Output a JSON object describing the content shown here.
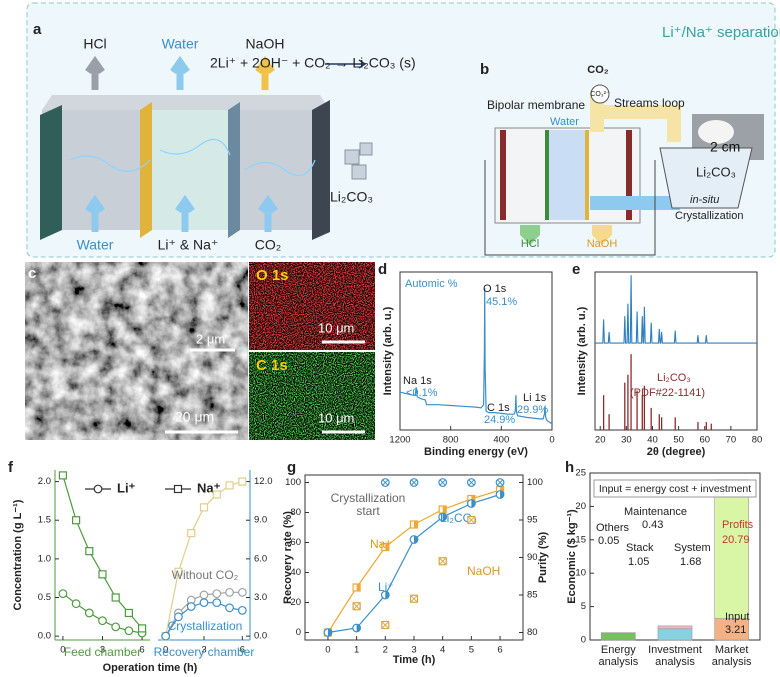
{
  "banner": "Li⁺/Na⁺ separation",
  "panel_a": {
    "label": "a",
    "outputs": [
      "HCl",
      "Water",
      "NaOH"
    ],
    "inputs": [
      "Water",
      "Li⁺ & Na⁺",
      "CO₂"
    ],
    "equation": "2Li⁺ + 2OH⁻ + CO₂ → Li₂CO₃ (s)",
    "product": "Li₂CO₃"
  },
  "panel_b": {
    "label": "b",
    "gas": "CO₂",
    "ion": "CO₃²⁻",
    "membrane": "Bipolar membrane",
    "loop": "Streams loop",
    "feed": "Water",
    "scale": "2 cm",
    "product": "Li₂CO₃",
    "mode": "in-situ",
    "process": "Crystallization",
    "acid": "HCl",
    "base": "NaOH"
  },
  "panel_c": {
    "label": "c",
    "inset_scale": "2 μm",
    "scale": "20 μm",
    "maps": [
      {
        "element": "O 1s",
        "scale": "10 μm"
      },
      {
        "element": "C 1s",
        "scale": "10 μm"
      }
    ]
  },
  "chart_data": [
    {
      "label": "d",
      "type": "line",
      "note": "Automic %",
      "xlabel": "Binding energy (eV)",
      "ylabel": "Intensity (arb. u.)",
      "color": "#3a8fc9",
      "xlim": [
        1200,
        0
      ],
      "xticks": [
        1200,
        800,
        400,
        0
      ],
      "ylim": [
        0,
        100
      ],
      "x": [
        1200,
        1150,
        1100,
        1080,
        1072,
        1064,
        1040,
        1000,
        990,
        900,
        800,
        700,
        600,
        560,
        540,
        534,
        531,
        528,
        520,
        500,
        450,
        400,
        350,
        300,
        290,
        285,
        280,
        270,
        200,
        100,
        70,
        60,
        55,
        50,
        40,
        20,
        0
      ],
      "values": [
        24,
        23,
        22,
        22,
        27,
        21,
        20,
        19,
        16,
        16,
        15.5,
        15,
        14.5,
        14,
        16,
        50,
        90,
        40,
        12,
        11,
        11,
        10.5,
        10,
        10,
        12,
        22,
        11,
        9,
        8,
        7,
        7,
        10,
        15,
        8,
        6,
        5,
        4
      ],
      "peaks": [
        {
          "name": "Na 1s",
          "value": 0.1,
          "value_label": "<0.1%"
        },
        {
          "name": "O 1s",
          "value": 45.1,
          "value_label": "45.1%"
        },
        {
          "name": "C 1s",
          "value": 24.9,
          "value_label": "24.9%"
        },
        {
          "name": "Li 1s",
          "value": 29.9,
          "value_label": "29.9%"
        }
      ]
    },
    {
      "label": "e",
      "type": "line",
      "xlabel": "2θ (degree)",
      "ylabel": "Intensity (arb. u.)",
      "xlim": [
        18,
        80
      ],
      "xticks": [
        20,
        30,
        40,
        50,
        60,
        70,
        80
      ],
      "ylim": [
        0,
        100
      ],
      "series": [
        {
          "color": "#2f7fc1",
          "style": "line",
          "x": [
            18,
            21,
            21.3,
            21.6,
            23.1,
            23.4,
            23.7,
            29.1,
            29.4,
            29.7,
            30.3,
            30.6,
            30.9,
            31.5,
            31.8,
            32.1,
            33.8,
            34.1,
            34.4,
            35.8,
            36.1,
            36.4,
            36.6,
            36.9,
            37.2,
            39.2,
            39.5,
            39.8,
            42.3,
            42.6,
            42.9,
            43.2,
            43.5,
            43.8,
            48.4,
            48.7,
            49,
            57.1,
            57.4,
            57.7,
            60.3,
            60.6,
            60.9,
            80
          ],
          "values": [
            55,
            55,
            70,
            55,
            55,
            62,
            55,
            55,
            72,
            55,
            55,
            80,
            55,
            55,
            98,
            55,
            55,
            75,
            55,
            55,
            72,
            55,
            55,
            78,
            55,
            55,
            68,
            55,
            55,
            64,
            55,
            55,
            62,
            55,
            55,
            63,
            55,
            55,
            60,
            55,
            55,
            60,
            55,
            55
          ]
        },
        {
          "name": "Li₂CO₃",
          "source": "(PDF#22-1141)",
          "color": "#8b2c2c",
          "style": "sticks",
          "x": [
            21.3,
            23.4,
            29.4,
            30.6,
            31.8,
            34.1,
            36.1,
            36.9,
            39.5,
            42.6,
            43.5,
            48.7,
            57.4,
            60.6,
            62.5
          ],
          "values": [
            22,
            10,
            30,
            35,
            48,
            25,
            22,
            28,
            14,
            10,
            8,
            8,
            5,
            5,
            4
          ]
        }
      ]
    },
    {
      "label": "f",
      "type": "line",
      "xlabel": "Operation time (h)",
      "ylabel": "Concentration (g L⁻¹)",
      "sections": [
        "Feed chamber",
        "Recovery chamber"
      ],
      "xlim": [
        -0.6,
        6.6
      ],
      "xticks": [
        0,
        3,
        6
      ],
      "ylim": [
        -0.05,
        2.15
      ],
      "yticks": [
        {
          "value": 0,
          "label": "0.0"
        },
        0.5,
        {
          "value": 1,
          "label": "1.0"
        },
        1.5,
        {
          "value": 2,
          "label": "2.0"
        }
      ],
      "y2lim": [
        -0.3,
        12.9
      ],
      "y2ticks": [
        {
          "value": 0,
          "label": "0.0"
        },
        {
          "value": 3,
          "label": "3.0"
        },
        {
          "value": 6,
          "label": "6.0"
        },
        {
          "value": 9,
          "label": "9.0"
        },
        {
          "value": 12,
          "label": "12.0"
        }
      ],
      "series": [
        {
          "name": "Li⁺",
          "color": "#4f9a3f",
          "marker": "circle",
          "x": [
            0,
            1,
            2,
            3,
            4,
            5,
            6
          ],
          "values": [
            0.55,
            0.42,
            0.3,
            0.2,
            0.12,
            0.07,
            0.04
          ]
        },
        {
          "name": "Na⁺",
          "color": "#4f9a3f",
          "marker": "square",
          "x": [
            0,
            1,
            2,
            3,
            4,
            5,
            6
          ],
          "values": [
            2.08,
            1.5,
            1.1,
            0.8,
            0.5,
            0.3,
            0.1
          ]
        },
        {
          "color": "#e0cf8a",
          "marker": "square",
          "axis": "y2",
          "x": [
            0,
            1,
            2,
            3,
            4,
            5,
            6
          ],
          "values": [
            0,
            5,
            8,
            10,
            11,
            11.7,
            12
          ]
        },
        {
          "annotation": "Without CO₂",
          "color": "#9ea3a8",
          "marker": "circle",
          "axis": "y2",
          "x": [
            0,
            1,
            2,
            3,
            4,
            5,
            6
          ],
          "values": [
            0,
            1.8,
            2.8,
            3.2,
            3.3,
            3.4,
            3.4
          ]
        },
        {
          "annotation": "Crystallization",
          "color": "#3a8fc9",
          "marker": "circle",
          "axis": "y2",
          "x": [
            0,
            1,
            2,
            3,
            4,
            5,
            6
          ],
          "values": [
            0,
            1.5,
            2.3,
            2.6,
            2.6,
            2.2,
            2
          ]
        }
      ]
    },
    {
      "label": "g",
      "type": "line",
      "xlabel": "Time (h)",
      "ylabel": "Recovery rate (%)",
      "y2label": "Purity (%)",
      "annotation": "Crystallization start",
      "xlim": [
        -0.8,
        6.8
      ],
      "xticks": [
        0,
        1,
        2,
        3,
        4,
        5,
        6
      ],
      "ylim": [
        -5,
        105
      ],
      "yticks": [
        0,
        20,
        40,
        60,
        80,
        100
      ],
      "y2lim": [
        79,
        101
      ],
      "y2ticks": [
        80,
        85,
        90,
        95,
        100
      ],
      "series": [
        {
          "name": "Na⁺",
          "color": "#f0a830",
          "marker": "half-square",
          "line": true,
          "x": [
            0,
            1,
            2,
            3,
            4,
            5,
            6
          ],
          "values": [
            0,
            30,
            57,
            72,
            82,
            89,
            95
          ]
        },
        {
          "name": "Li⁺",
          "color": "#3a8fc9",
          "marker": "half-circle",
          "line": true,
          "x": [
            0,
            1,
            2,
            3,
            4,
            5,
            6
          ],
          "values": [
            0,
            3,
            25,
            62,
            77,
            86,
            92
          ]
        },
        {
          "name": "Li₂CO₃",
          "color": "#3a8fc9",
          "marker": "crossed-circle",
          "line": false,
          "axis": "y2",
          "x": [
            2,
            3,
            4,
            5,
            6
          ],
          "values": [
            100,
            100,
            100,
            100,
            100
          ]
        },
        {
          "name": "NaOH",
          "color": "#d9a441",
          "marker": "crossed-square",
          "line": false,
          "axis": "y2",
          "x": [
            1,
            2,
            3,
            4,
            5
          ],
          "values": [
            83.5,
            81,
            84.5,
            89.5,
            95
          ]
        }
      ]
    },
    {
      "label": "h",
      "type": "bar",
      "stacked": true,
      "ylabel": "Economic ($ kg⁻¹)",
      "note": "Input = energy cost + investment",
      "categories": [
        "Energy analysis",
        "Investment analysis",
        "Market analysis"
      ],
      "ylim": [
        0,
        25
      ],
      "yticks": [
        0,
        5,
        10,
        15,
        20,
        25
      ],
      "series": [
        {
          "name": "Stack",
          "color": "#74c25a",
          "values": [
            1.05,
            null,
            null
          ]
        },
        {
          "name": "Others",
          "color": "#3f8a30",
          "values": [
            0.05,
            null,
            null
          ]
        },
        {
          "name": "System",
          "color": "#86d2e0",
          "values": [
            null,
            1.68,
            null
          ]
        },
        {
          "name": "Maintenance",
          "color": "#f5b5c5",
          "values": [
            null,
            0.43,
            null
          ]
        },
        {
          "name": "Input",
          "color": "#f4b183",
          "values": [
            null,
            null,
            3.21
          ]
        },
        {
          "name": "Profits",
          "color": "#d9f5a6",
          "values": [
            null,
            null,
            20.79
          ]
        }
      ]
    }
  ]
}
